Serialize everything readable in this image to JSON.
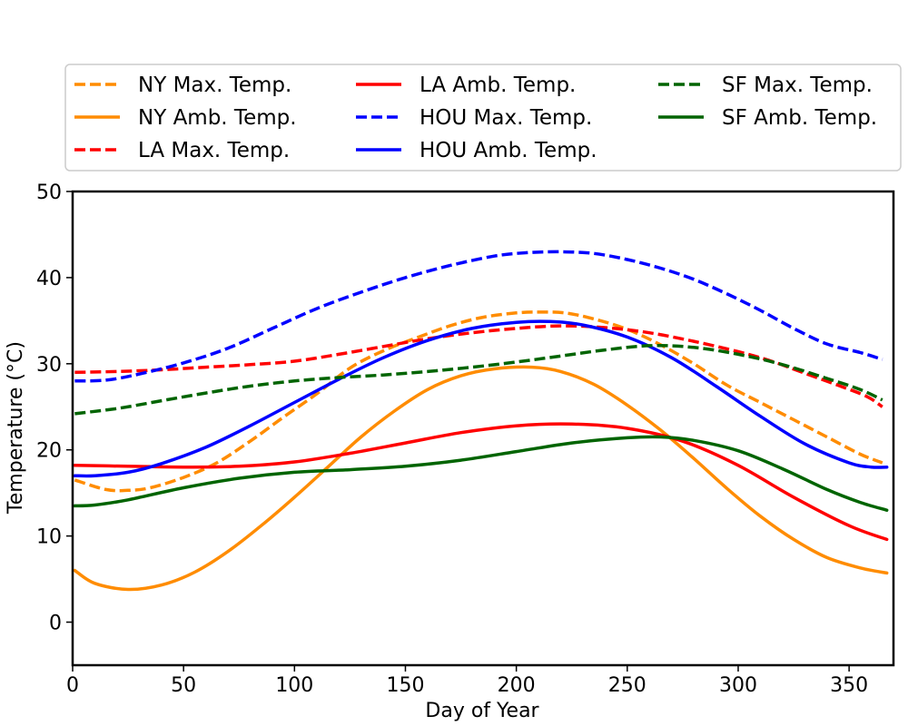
{
  "chart_data": {
    "type": "line",
    "xlabel": "Day of Year",
    "ylabel": "Temperature (°C)",
    "xlim": [
      0,
      370
    ],
    "ylim": [
      -5,
      50
    ],
    "xticks": [
      0,
      50,
      100,
      150,
      200,
      250,
      300,
      350
    ],
    "yticks": [
      0,
      10,
      20,
      30,
      40,
      50
    ],
    "grid": false,
    "legend_position": "top, outside plot, 3 columns",
    "series": [
      {
        "name": "NY Max. Temp.",
        "color": "#ff8c00",
        "style": "dashed",
        "x": [
          1,
          15,
          25,
          35,
          50,
          65,
          80,
          95,
          110,
          125,
          140,
          155,
          170,
          185,
          200,
          210,
          222,
          235,
          250,
          265,
          280,
          295,
          310,
          325,
          340,
          355,
          365
        ],
        "y": [
          16.5,
          15.4,
          15.3,
          15.6,
          16.8,
          18.5,
          21,
          23.8,
          26.5,
          29.5,
          31.5,
          33,
          34.4,
          35.4,
          35.9,
          36.0,
          35.9,
          35.2,
          34,
          32.2,
          30,
          27.5,
          25.5,
          23.5,
          21.5,
          19.5,
          18.5
        ]
      },
      {
        "name": "NY Amb. Temp.",
        "color": "#ff8c00",
        "style": "solid",
        "x": [
          1,
          10,
          25,
          40,
          55,
          70,
          85,
          100,
          115,
          130,
          145,
          160,
          175,
          190,
          207,
          220,
          235,
          250,
          265,
          280,
          295,
          310,
          325,
          340,
          355,
          367
        ],
        "y": [
          6.0,
          4.5,
          3.8,
          4.3,
          5.8,
          8.2,
          11.2,
          14.5,
          18,
          21.5,
          24.5,
          27,
          28.6,
          29.4,
          29.6,
          29.1,
          27.6,
          25.2,
          22.3,
          19,
          15.5,
          12.3,
          9.6,
          7.5,
          6.3,
          5.7
        ]
      },
      {
        "name": "LA Max. Temp.",
        "color": "#ff0000",
        "style": "dashed",
        "x": [
          1,
          20,
          40,
          60,
          80,
          100,
          120,
          140,
          160,
          180,
          200,
          220,
          240,
          260,
          280,
          300,
          315,
          330,
          345,
          358,
          365
        ],
        "y": [
          29,
          29.1,
          29.3,
          29.6,
          29.9,
          30.3,
          31.1,
          32,
          32.9,
          33.6,
          34.1,
          34.4,
          34.2,
          33.6,
          32.6,
          31.4,
          30.3,
          28.9,
          27.5,
          26.2,
          25
        ]
      },
      {
        "name": "LA Amb. Temp.",
        "color": "#ff0000",
        "style": "solid",
        "x": [
          1,
          25,
          50,
          75,
          100,
          125,
          150,
          175,
          200,
          225,
          250,
          275,
          300,
          325,
          350,
          367
        ],
        "y": [
          18.2,
          18.1,
          18.0,
          18.1,
          18.6,
          19.6,
          20.8,
          22,
          22.8,
          23.0,
          22.5,
          21,
          18.2,
          14.5,
          11.2,
          9.6
        ]
      },
      {
        "name": "HOU Max. Temp.",
        "color": "#0000ff",
        "style": "dashed",
        "x": [
          1,
          15,
          30,
          50,
          70,
          90,
          110,
          130,
          150,
          170,
          190,
          205,
          220,
          235,
          250,
          265,
          280,
          295,
          310,
          325,
          340,
          355,
          365
        ],
        "y": [
          28,
          28.1,
          28.8,
          30.1,
          31.8,
          34.1,
          36.4,
          38.3,
          40,
          41.4,
          42.5,
          42.9,
          43.0,
          42.8,
          42.1,
          41.1,
          39.8,
          38.1,
          36.2,
          34.1,
          32.3,
          31.3,
          30.5
        ]
      },
      {
        "name": "HOU Amb. Temp.",
        "color": "#0000ff",
        "style": "solid",
        "x": [
          1,
          10,
          25,
          40,
          60,
          80,
          100,
          120,
          140,
          160,
          180,
          200,
          215,
          230,
          250,
          270,
          290,
          310,
          330,
          350,
          360,
          367
        ],
        "y": [
          17,
          17,
          17.4,
          18.4,
          20.3,
          22.8,
          25.5,
          28.2,
          30.7,
          32.7,
          34.1,
          34.8,
          34.9,
          34.5,
          33.1,
          30.7,
          27.4,
          23.9,
          20.7,
          18.5,
          18,
          18
        ]
      },
      {
        "name": "SF Max. Temp.",
        "color": "#006400",
        "style": "dashed",
        "x": [
          1,
          20,
          40,
          60,
          80,
          100,
          120,
          140,
          160,
          180,
          200,
          220,
          240,
          260,
          280,
          300,
          320,
          340,
          355,
          365
        ],
        "y": [
          24.2,
          24.8,
          25.7,
          26.6,
          27.4,
          28,
          28.4,
          28.7,
          29.1,
          29.6,
          30.2,
          30.9,
          31.6,
          32.1,
          31.9,
          31.1,
          29.9,
          28.3,
          27,
          25.8
        ]
      },
      {
        "name": "SF Amb. Temp.",
        "color": "#006400",
        "style": "solid",
        "x": [
          1,
          10,
          25,
          50,
          75,
          100,
          125,
          150,
          175,
          200,
          225,
          250,
          265,
          280,
          300,
          320,
          340,
          355,
          367
        ],
        "y": [
          13.5,
          13.6,
          14.2,
          15.6,
          16.7,
          17.4,
          17.7,
          18.1,
          18.8,
          19.8,
          20.8,
          21.4,
          21.5,
          21.1,
          19.9,
          17.8,
          15.4,
          13.9,
          13
        ]
      }
    ]
  }
}
